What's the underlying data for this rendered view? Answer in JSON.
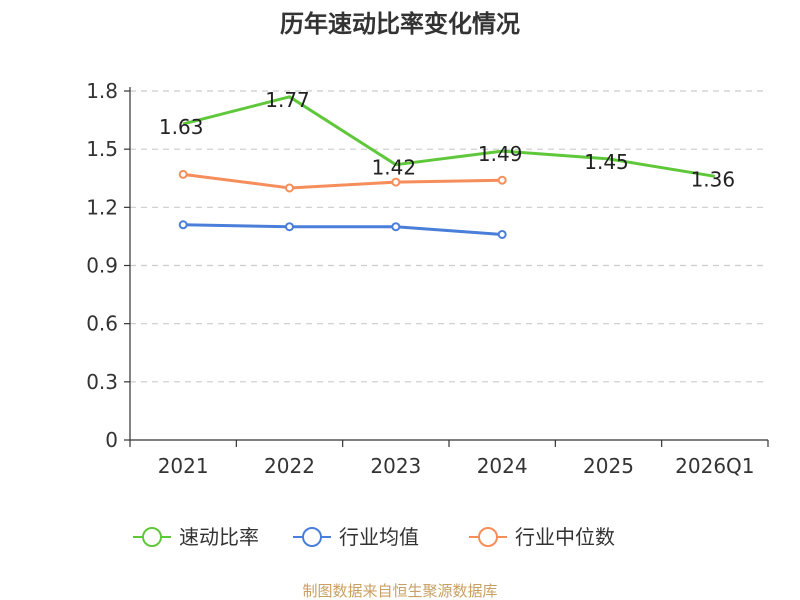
{
  "chart_data": {
    "type": "line",
    "title": "历年速动比率变化情况",
    "categories": [
      "2021",
      "2022",
      "2023",
      "2024",
      "2025",
      "2026Q1"
    ],
    "y_ticks": [
      "0",
      "0.3",
      "0.6",
      "0.9",
      "1.2",
      "1.5",
      "1.8"
    ],
    "ylim": [
      0,
      1.8
    ],
    "grid": true,
    "legend_position": "bottom",
    "series": [
      {
        "name": "速动比率",
        "color": "#5fc73a",
        "values": [
          1.63,
          1.77,
          1.42,
          1.49,
          1.45,
          1.36
        ],
        "labels": [
          "1.63",
          "1.77",
          "1.42",
          "1.49",
          "1.45",
          "1.36"
        ],
        "markers": false
      },
      {
        "name": "行业均值",
        "color": "#4a7fd9",
        "values": [
          1.11,
          1.1,
          1.1,
          1.06,
          null,
          null
        ],
        "markers": true
      },
      {
        "name": "行业中位数",
        "color": "#f58e5b",
        "values": [
          1.37,
          1.3,
          1.33,
          1.34,
          null,
          null
        ],
        "markers": true
      }
    ],
    "source": "制图数据来自恒生聚源数据库"
  }
}
